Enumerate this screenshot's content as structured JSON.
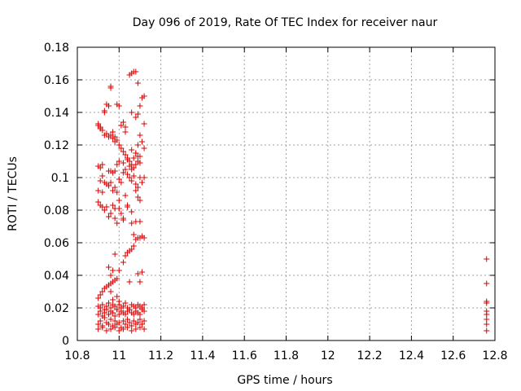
{
  "chart_data": {
    "type": "scatter",
    "title": "Day 096 of 2019, Rate Of TEC Index for receiver naur",
    "xlabel": "GPS time / hours",
    "ylabel": "ROTI / TECUs",
    "xlim": [
      10.8,
      12.8
    ],
    "ylim": [
      0,
      0.18
    ],
    "xticks": [
      "10.8",
      "11",
      "11.2",
      "11.4",
      "11.6",
      "11.8",
      "12",
      "12.2",
      "12.4",
      "12.6",
      "12.8"
    ],
    "yticks": [
      "0",
      "0.02",
      "0.04",
      "0.06",
      "0.08",
      "0.1",
      "0.12",
      "0.14",
      "0.16",
      "0.18"
    ],
    "grid": true,
    "marker": "+",
    "color": "#dd0000",
    "series": [
      {
        "x": [
          10.9,
          10.91,
          10.92,
          10.93,
          10.94,
          10.95,
          10.96,
          10.97,
          10.98,
          10.99,
          11.0,
          11.01,
          11.02,
          11.03,
          11.04,
          11.05,
          11.06,
          11.07,
          11.08,
          11.09,
          11.1,
          11.11,
          11.12,
          10.9,
          10.91,
          10.92,
          10.93,
          10.94,
          10.95,
          10.96,
          10.97,
          10.98,
          10.99,
          11.0,
          11.01,
          11.02,
          11.03,
          11.04,
          11.05,
          11.06,
          11.07,
          11.08,
          11.09,
          11.1,
          11.11,
          11.12,
          10.9,
          10.91,
          10.92,
          10.93,
          10.94,
          10.95,
          10.96,
          10.97,
          10.98,
          10.99,
          11.0,
          11.01,
          11.02,
          11.03,
          11.04,
          11.05,
          11.06,
          11.07,
          11.08,
          11.09,
          11.1,
          11.11,
          11.12,
          10.9,
          10.92,
          10.94,
          10.96,
          10.98,
          11.0,
          11.02,
          11.04,
          11.06,
          11.08,
          11.1,
          11.12,
          10.9,
          10.91,
          10.92,
          10.93,
          10.94,
          10.95,
          10.96,
          10.97,
          10.98,
          10.99,
          10.95,
          10.96,
          10.97,
          10.98,
          11.0,
          11.02,
          11.03,
          11.04,
          11.05,
          11.06,
          11.07,
          11.08,
          11.09,
          11.1,
          11.11,
          11.12,
          10.96,
          10.97,
          10.99,
          11.0,
          11.05,
          11.09,
          11.1,
          11.11,
          10.9,
          10.91,
          10.92,
          10.93,
          10.95,
          10.97,
          10.98,
          10.99,
          11.0,
          11.01,
          11.02,
          11.03,
          11.04,
          11.06,
          11.07,
          11.08,
          11.09,
          11.1,
          10.9,
          10.91,
          10.92,
          10.93,
          10.94,
          10.95,
          10.96,
          10.97,
          10.98,
          10.99,
          11.0,
          11.01,
          11.02,
          11.03,
          11.04,
          11.05,
          11.06,
          11.07,
          11.08,
          11.09,
          11.1,
          11.11,
          11.12,
          10.9,
          10.91,
          10.92,
          10.93,
          10.94,
          10.95,
          10.96,
          10.97,
          10.98,
          10.99,
          11.0,
          11.01,
          11.02,
          11.03,
          11.04,
          11.05,
          11.06,
          11.07,
          11.08,
          11.09,
          11.1,
          11.11,
          11.12,
          10.9,
          10.91,
          10.92,
          10.95,
          10.96,
          10.97,
          10.98,
          10.99,
          11.0,
          11.02,
          11.04,
          11.06,
          11.07,
          11.08,
          11.09,
          11.1,
          10.93,
          10.95,
          10.96,
          10.99,
          11.02,
          11.03,
          11.06,
          11.08,
          11.09,
          11.1,
          11.11,
          11.12,
          10.9,
          10.91,
          10.93,
          10.94,
          10.96,
          10.97,
          10.98,
          11.0,
          11.01,
          11.03,
          11.05,
          11.06,
          11.08,
          11.09,
          11.1,
          11.12,
          10.92,
          10.94,
          10.96,
          10.98,
          11.0,
          11.02,
          11.04,
          11.06,
          11.08,
          11.1,
          11.05,
          11.06,
          11.07,
          11.08,
          11.09,
          12.76,
          12.76,
          12.76,
          12.76,
          12.76,
          12.76,
          12.76,
          12.76,
          12.76
        ],
        "y": [
          0.01,
          0.012,
          0.009,
          0.014,
          0.011,
          0.01,
          0.013,
          0.009,
          0.012,
          0.01,
          0.011,
          0.008,
          0.012,
          0.01,
          0.013,
          0.011,
          0.009,
          0.012,
          0.01,
          0.011,
          0.013,
          0.01,
          0.012,
          0.016,
          0.018,
          0.015,
          0.017,
          0.019,
          0.016,
          0.018,
          0.017,
          0.015,
          0.019,
          0.016,
          0.018,
          0.017,
          0.016,
          0.018,
          0.019,
          0.017,
          0.016,
          0.018,
          0.017,
          0.016,
          0.019,
          0.018,
          0.021,
          0.02,
          0.022,
          0.019,
          0.021,
          0.023,
          0.02,
          0.022,
          0.021,
          0.019,
          0.022,
          0.02,
          0.021,
          0.023,
          0.02,
          0.019,
          0.022,
          0.021,
          0.02,
          0.022,
          0.021,
          0.02,
          0.022,
          0.007,
          0.008,
          0.006,
          0.007,
          0.008,
          0.006,
          0.007,
          0.008,
          0.006,
          0.007,
          0.008,
          0.007,
          0.026,
          0.028,
          0.03,
          0.032,
          0.033,
          0.034,
          0.035,
          0.036,
          0.037,
          0.038,
          0.045,
          0.04,
          0.043,
          0.053,
          0.043,
          0.048,
          0.052,
          0.054,
          0.055,
          0.056,
          0.058,
          0.062,
          0.063,
          0.063,
          0.064,
          0.063,
          0.03,
          0.025,
          0.027,
          0.024,
          0.036,
          0.041,
          0.036,
          0.042,
          0.085,
          0.083,
          0.091,
          0.08,
          0.076,
          0.083,
          0.075,
          0.072,
          0.081,
          0.078,
          0.074,
          0.089,
          0.082,
          0.072,
          0.065,
          0.092,
          0.088,
          0.086,
          0.092,
          0.098,
          0.101,
          0.097,
          0.096,
          0.095,
          0.097,
          0.092,
          0.094,
          0.091,
          0.099,
          0.097,
          0.103,
          0.105,
          0.102,
          0.1,
          0.098,
          0.101,
          0.096,
          0.094,
          0.1,
          0.097,
          0.1,
          0.132,
          0.13,
          0.129,
          0.126,
          0.127,
          0.125,
          0.126,
          0.124,
          0.122,
          0.123,
          0.12,
          0.118,
          0.116,
          0.114,
          0.112,
          0.11,
          0.108,
          0.112,
          0.115,
          0.12,
          0.126,
          0.122,
          0.118,
          0.107,
          0.106,
          0.108,
          0.104,
          0.104,
          0.103,
          0.104,
          0.108,
          0.11,
          0.109,
          0.111,
          0.105,
          0.106,
          0.108,
          0.11,
          0.109,
          0.14,
          0.144,
          0.156,
          0.145,
          0.134,
          0.131,
          0.14,
          0.137,
          0.139,
          0.144,
          0.149,
          0.15,
          0.133,
          0.131,
          0.141,
          0.145,
          0.155,
          0.128,
          0.125,
          0.144,
          0.132,
          0.128,
          0.107,
          0.117,
          0.115,
          0.113,
          0.113,
          0.133,
          0.082,
          0.082,
          0.078,
          0.081,
          0.086,
          0.075,
          0.083,
          0.079,
          0.073,
          0.073,
          0.163,
          0.164,
          0.165,
          0.165,
          0.158,
          0.05,
          0.035,
          0.024,
          0.023,
          0.018,
          0.016,
          0.013,
          0.01,
          0.006
        ]
      }
    ]
  }
}
